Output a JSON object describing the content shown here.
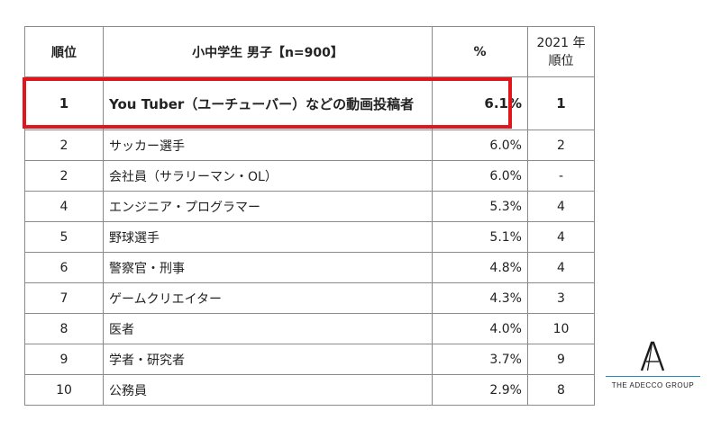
{
  "table": {
    "headers": {
      "rank": "順位",
      "job": "小中学生 男子【n=900】",
      "pct": "%",
      "prev_line1": "2021 年",
      "prev_line2": "順位"
    },
    "rows": [
      {
        "rank": "1",
        "job": "You Tuber（ユーチューバー）などの動画投稿者",
        "pct": "6.1%",
        "prev": "1"
      },
      {
        "rank": "2",
        "job": "サッカー選手",
        "pct": "6.0%",
        "prev": "2"
      },
      {
        "rank": "2",
        "job": "会社員（サラリーマン・OL）",
        "pct": "6.0%",
        "prev": "-"
      },
      {
        "rank": "4",
        "job": "エンジニア・プログラマー",
        "pct": "5.3%",
        "prev": "4"
      },
      {
        "rank": "5",
        "job": "野球選手",
        "pct": "5.1%",
        "prev": "4"
      },
      {
        "rank": "6",
        "job": "警察官・刑事",
        "pct": "4.8%",
        "prev": "4"
      },
      {
        "rank": "7",
        "job": "ゲームクリエイター",
        "pct": "4.3%",
        "prev": "3"
      },
      {
        "rank": "8",
        "job": "医者",
        "pct": "4.0%",
        "prev": "10"
      },
      {
        "rank": "9",
        "job": "学者・研究者",
        "pct": "3.7%",
        "prev": "9"
      },
      {
        "rank": "10",
        "job": "公務員",
        "pct": "2.9%",
        "prev": "8"
      }
    ]
  },
  "highlight_color": "#e0161c",
  "logo": {
    "icon": "adecco-a-logo-icon",
    "text": "THE ADECCO GROUP"
  }
}
